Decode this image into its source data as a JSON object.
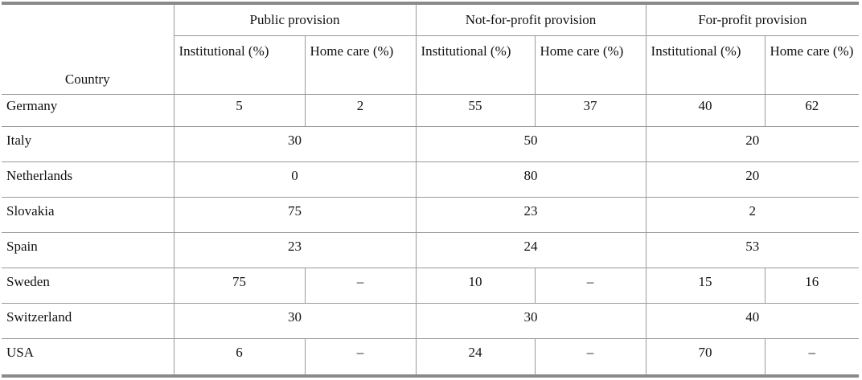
{
  "header": {
    "country": "Country",
    "groups": [
      "Public provision",
      "Not-for-profit provision",
      "For-profit provision"
    ],
    "subheaders": [
      "Institutional (%)",
      "Home care (%)",
      "Institutional (%)",
      "Home care (%)",
      "Institutional (%)",
      "Home care (%)"
    ]
  },
  "rows": [
    {
      "country": "Germany",
      "cells": [
        5,
        2,
        55,
        37,
        40,
        62
      ]
    },
    {
      "country": "Italy",
      "cells": [
        30,
        50,
        20
      ]
    },
    {
      "country": "Netherlands",
      "cells": [
        0,
        80,
        20
      ]
    },
    {
      "country": "Slovakia",
      "cells": [
        75,
        23,
        2
      ]
    },
    {
      "country": "Spain",
      "cells": [
        23,
        24,
        53
      ]
    },
    {
      "country": "Sweden",
      "cells": [
        75,
        "–",
        10,
        "–",
        15,
        16
      ]
    },
    {
      "country": "Switzerland",
      "cells": [
        30,
        30,
        40
      ]
    },
    {
      "country": "USA",
      "cells": [
        6,
        "–",
        24,
        "–",
        70,
        "–"
      ]
    }
  ]
}
